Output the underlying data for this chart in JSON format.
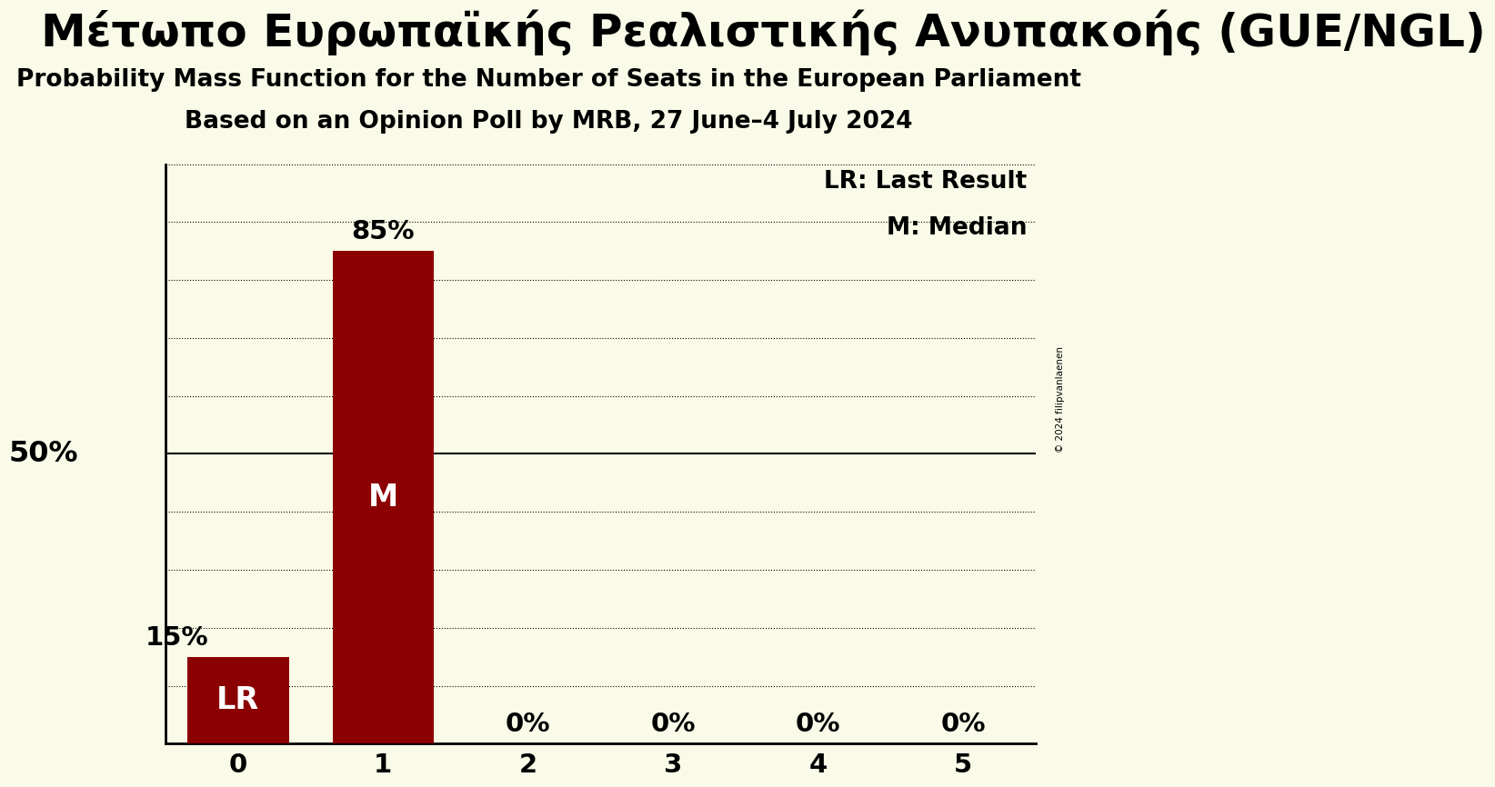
{
  "title_line1": "Μέτωπο Ευρωπαϊκής Ρεαλιστικής Ανυπακοής (GUE/NGL)",
  "title_line2": "Probability Mass Function for the Number of Seats in the European Parliament",
  "title_line3": "Based on an Opinion Poll by MRB, 27 June–4 July 2024",
  "categories": [
    0,
    1,
    2,
    3,
    4,
    5
  ],
  "values": [
    0.15,
    0.85,
    0.0,
    0.0,
    0.0,
    0.0
  ],
  "bar_color": "#8B0000",
  "background_color": "#FAFAE8",
  "bar_labels": [
    "LR",
    "M",
    "",
    "",
    "",
    ""
  ],
  "pct_labels": [
    "15%",
    "85%",
    "0%",
    "0%",
    "0%",
    "0%"
  ],
  "ylabel_text": "50%",
  "legend_lr": "LR: Last Result",
  "legend_m": "M: Median",
  "copyright_text": "© 2024 filipvanlaenen",
  "title_line1_fontsize": 36,
  "title_line2_fontsize": 19,
  "title_line3_fontsize": 19,
  "bar_label_fontsize": 24,
  "pct_label_fontsize": 21,
  "tick_fontsize": 21,
  "legend_fontsize": 19,
  "ylabel_fontsize": 23
}
